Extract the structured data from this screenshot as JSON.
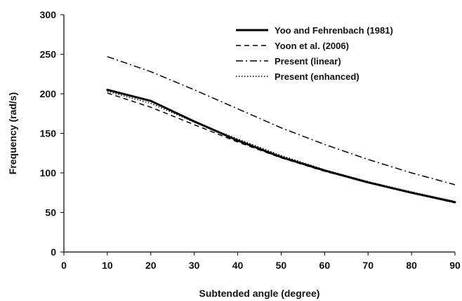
{
  "chart_data": {
    "type": "line",
    "title": "",
    "xlabel": "Subtended angle (degree)",
    "ylabel": "Frequency (rad/s)",
    "xlim": [
      0,
      90
    ],
    "ylim": [
      0,
      300
    ],
    "xticks": [
      0,
      10,
      20,
      30,
      40,
      50,
      60,
      70,
      80,
      90
    ],
    "yticks": [
      0,
      50,
      100,
      150,
      200,
      250,
      300
    ],
    "grid": false,
    "legend_position": "top-right",
    "x": [
      10,
      20,
      30,
      40,
      50,
      60,
      70,
      80,
      90
    ],
    "series": [
      {
        "name": "Yoo and Fehrenbach (1981)",
        "style": "solid",
        "stroke_color": "#000000",
        "values": [
          205,
          191,
          165,
          141,
          120,
          103,
          88,
          75,
          63
        ]
      },
      {
        "name": "Yoon et al. (2006)",
        "style": "dashed",
        "stroke_color": "#000000",
        "values": [
          201,
          183,
          161,
          139,
          119,
          102,
          88,
          75,
          62
        ]
      },
      {
        "name": "Present (linear)",
        "style": "dash-dot",
        "stroke_color": "#000000",
        "values": [
          247,
          228,
          205,
          181,
          157,
          136,
          117,
          100,
          85
        ]
      },
      {
        "name": "Present (enhanced)",
        "style": "dotted",
        "stroke_color": "#000000",
        "values": [
          203,
          188,
          164,
          143,
          122,
          104,
          89,
          76,
          64
        ]
      }
    ]
  }
}
